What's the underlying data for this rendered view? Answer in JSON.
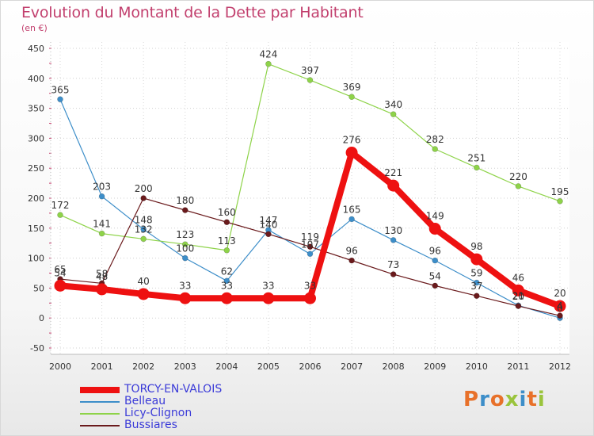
{
  "header": {
    "title": "Evolution du Montant de la Dette par Habitant",
    "unit": "(en €)"
  },
  "logo": {
    "text": "Proxiti",
    "colors": [
      "#e8712a",
      "#3d8ec9",
      "#e8712a",
      "#9ac43c",
      "#3d8ec9",
      "#e8712a",
      "#9ac43c"
    ]
  },
  "chart_data": {
    "type": "line",
    "x": [
      "2000",
      "2001",
      "2002",
      "2003",
      "2004",
      "2005",
      "2006",
      "2007",
      "2008",
      "2009",
      "2010",
      "2011",
      "2012"
    ],
    "ylim": [
      -50,
      450
    ],
    "yticks": [
      -50,
      0,
      50,
      100,
      150,
      200,
      250,
      300,
      350,
      400,
      450
    ],
    "grid": true,
    "legend": "bottom-left",
    "series": [
      {
        "name": "TORCY-EN-VALOIS",
        "color": "#ee1111",
        "emphasis": true,
        "values": [
          54,
          48,
          40,
          33,
          33,
          33,
          33,
          276,
          221,
          149,
          98,
          46,
          20
        ],
        "labels": [
          "54",
          "48",
          "40",
          "33",
          "33",
          "33",
          "33",
          "276",
          "221",
          "149",
          "98",
          "46",
          "20"
        ]
      },
      {
        "name": "Belleau",
        "color": "#3d8ec9",
        "values": [
          365,
          203,
          148,
          100,
          62,
          147,
          107,
          165,
          130,
          96,
          59,
          21,
          0
        ],
        "labels": [
          "365",
          "203",
          "148",
          "100",
          "62",
          "147",
          "107",
          "165",
          "130",
          "96",
          "59",
          "21",
          "0"
        ]
      },
      {
        "name": "Licy-Clignon",
        "color": "#8ed349",
        "values": [
          172,
          141,
          132,
          123,
          113,
          424,
          397,
          369,
          340,
          282,
          251,
          220,
          195
        ],
        "labels": [
          "172",
          "141",
          "132",
          "123",
          "113",
          "424",
          "397",
          "369",
          "340",
          "282",
          "251",
          "220",
          "195"
        ]
      },
      {
        "name": "Bussiares",
        "color": "#6a1a1c",
        "values": [
          65,
          58,
          200,
          180,
          160,
          140,
          119,
          96,
          73,
          54,
          37,
          20,
          4
        ],
        "labels": [
          "65",
          "58",
          "200",
          "180",
          "160",
          "140",
          "119",
          "96",
          "73",
          "54",
          "37",
          "20",
          "4"
        ]
      }
    ]
  }
}
